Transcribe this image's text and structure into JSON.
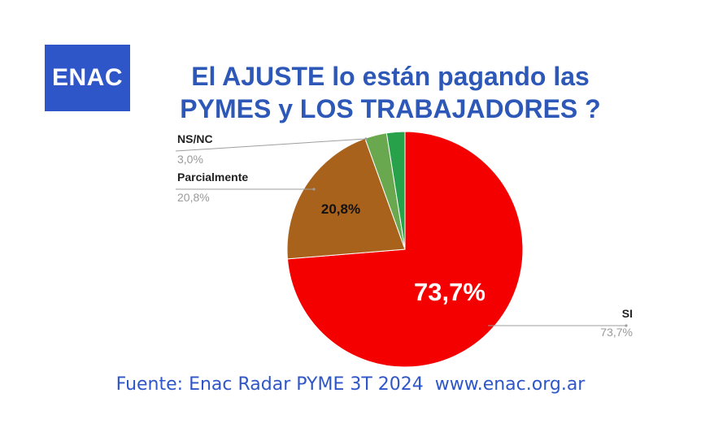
{
  "logo": {
    "text": "ENAC"
  },
  "title": {
    "line1": "El AJUSTE lo están pagando las",
    "line2": "PYMES y LOS TRABAJADORES ?"
  },
  "source": "Fuente: Enac Radar PYME 3T 2024  www.enac.org.ar",
  "colors": {
    "si": "#F40000",
    "parcialmente": "#A9621B",
    "nsnc": "#6AA84F",
    "other": "#27A14A",
    "brand": "#2F56C9"
  },
  "chart_data": {
    "type": "pie",
    "title": "El AJUSTE lo están pagando las PYMES y LOS TRABAJADORES ?",
    "slices": [
      {
        "label": "SI",
        "value": 73.7,
        "value_label": "73,7%",
        "inner_label": "73,7%",
        "color": "#F40000"
      },
      {
        "label": "Parcialmente",
        "value": 20.8,
        "value_label": "20,8%",
        "inner_label": "20,8%",
        "color": "#A9621B"
      },
      {
        "label": "NS/NC",
        "value": 3.0,
        "value_label": "3,0%",
        "inner_label": "",
        "color": "#6AA84F"
      },
      {
        "label": "",
        "value": 2.5,
        "value_label": "",
        "inner_label": "",
        "color": "#27A14A"
      }
    ]
  }
}
